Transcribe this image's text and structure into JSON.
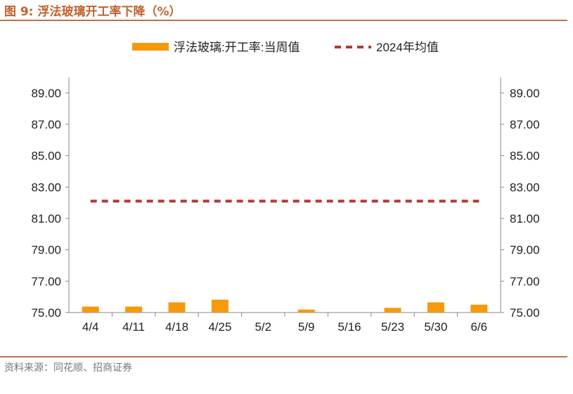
{
  "title": "图 9:  浮法玻璃开工率下降（%）",
  "source": "资料来源：同花顺、招商证券",
  "colors": {
    "bar": "#f59a0c",
    "avg_line": "#b03a33",
    "axis": "#888888",
    "title": "#c0622e",
    "rule": "#c0704a"
  },
  "chart_data": {
    "type": "bar",
    "categories": [
      "4/4",
      "4/11",
      "4/18",
      "4/25",
      "5/2",
      "5/9",
      "5/16",
      "5/23",
      "5/30",
      "6/6"
    ],
    "series": [
      {
        "name": "浮法玻璃:开工率:当周值",
        "type": "bar",
        "values": [
          75.38,
          75.38,
          75.65,
          75.82,
          null,
          75.19,
          null,
          75.3,
          75.65,
          75.5
        ]
      },
      {
        "name": "2024年均值",
        "type": "line",
        "style": "dashed",
        "values": [
          82.1,
          82.1,
          82.1,
          82.1,
          82.1,
          82.1,
          82.1,
          82.1,
          82.1,
          82.1
        ]
      }
    ],
    "yticks": [
      "75.00",
      "77.00",
      "79.00",
      "81.00",
      "83.00",
      "85.00",
      "87.00",
      "89.00"
    ],
    "ylim": [
      75,
      90
    ],
    "y2": true,
    "legend": "top-center",
    "grid": false
  }
}
